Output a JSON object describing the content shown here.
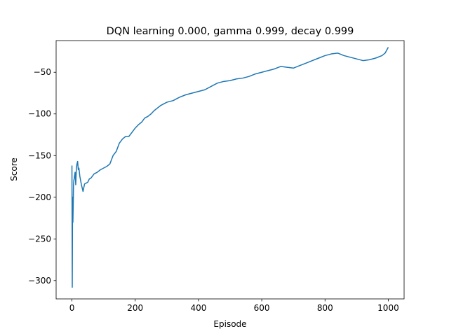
{
  "chart_data": {
    "type": "line",
    "title": "DQN learning 0.000, gamma 0.999, decay 0.999",
    "xlabel": "Episode",
    "ylabel": "Score",
    "xlim": [
      -50,
      1050
    ],
    "ylim": [
      -322,
      -12
    ],
    "grid": false,
    "x_ticks": [
      0,
      200,
      400,
      600,
      800,
      1000
    ],
    "x_tick_labels": [
      "0",
      "200",
      "400",
      "600",
      "800",
      "1000"
    ],
    "y_ticks": [
      -300,
      -250,
      -200,
      -150,
      -100,
      -50
    ],
    "y_tick_labels": [
      "−300",
      "−250",
      "−200",
      "−150",
      "−100",
      "−50"
    ],
    "series": [
      {
        "color": "#1f77b4",
        "x": [
          0,
          1,
          2,
          3,
          4,
          5,
          6,
          7,
          8,
          10,
          12,
          14,
          16,
          18,
          20,
          22,
          25,
          30,
          35,
          40,
          45,
          50,
          55,
          60,
          70,
          80,
          90,
          100,
          110,
          120,
          130,
          140,
          150,
          160,
          170,
          180,
          190,
          200,
          210,
          220,
          230,
          240,
          250,
          260,
          270,
          280,
          290,
          300,
          320,
          340,
          360,
          380,
          400,
          420,
          440,
          460,
          480,
          500,
          520,
          540,
          560,
          580,
          600,
          620,
          640,
          660,
          680,
          700,
          720,
          740,
          760,
          780,
          800,
          820,
          840,
          860,
          880,
          900,
          920,
          940,
          960,
          980,
          990,
          1000
        ],
        "values": [
          -162,
          -308,
          -200,
          -230,
          -210,
          -185,
          -180,
          -178,
          -175,
          -170,
          -185,
          -165,
          -160,
          -157,
          -167,
          -165,
          -175,
          -185,
          -193,
          -184,
          -183,
          -182,
          -178,
          -177,
          -172,
          -170,
          -167,
          -165,
          -163,
          -160,
          -150,
          -145,
          -135,
          -130,
          -127,
          -127,
          -122,
          -117,
          -113,
          -110,
          -105,
          -103,
          -100,
          -96,
          -93,
          -90,
          -88,
          -86,
          -84,
          -80,
          -77,
          -75,
          -73,
          -71,
          -67,
          -63,
          -61,
          -60,
          -58,
          -57,
          -55,
          -52,
          -50,
          -48,
          -46,
          -43,
          -44,
          -45,
          -42,
          -39,
          -36,
          -33,
          -30,
          -28,
          -27,
          -30,
          -32,
          -34,
          -36,
          -35,
          -33,
          -30,
          -27,
          -20
        ]
      }
    ]
  }
}
